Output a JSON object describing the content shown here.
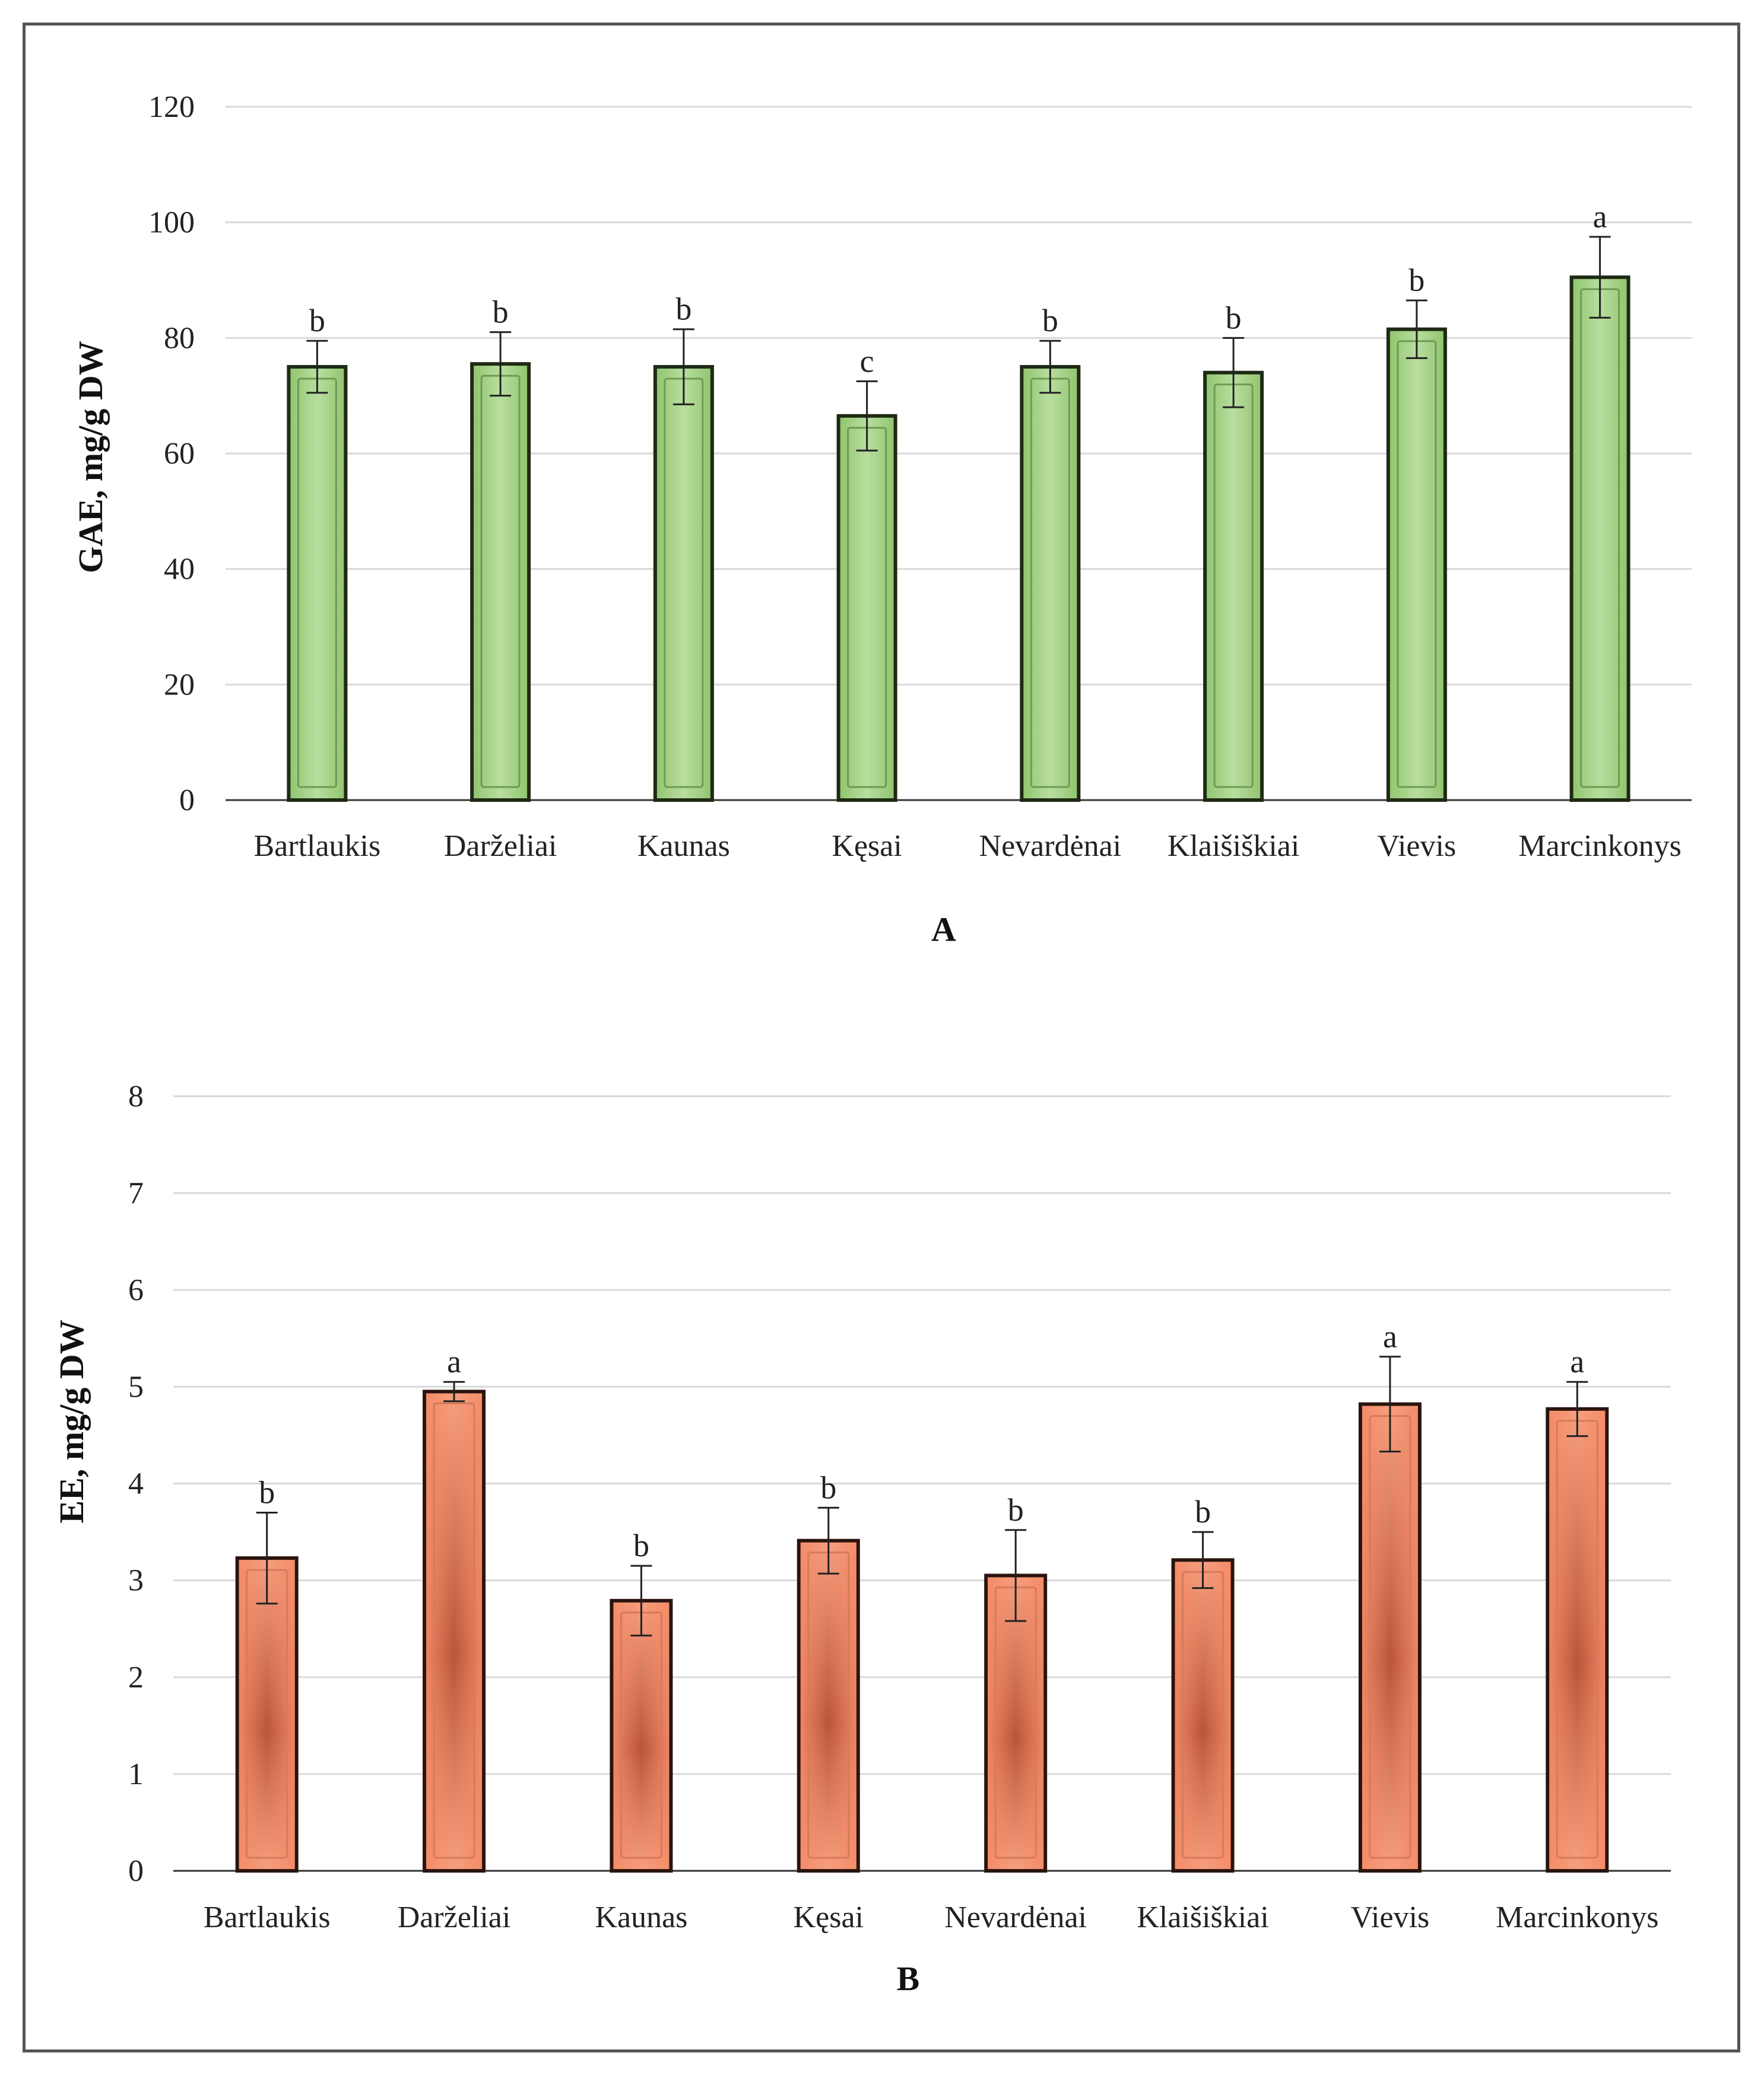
{
  "chart_data": [
    {
      "type": "bar",
      "panel_label": "A",
      "title": "",
      "xlabel": "",
      "ylabel": "GAE, mg/g DW",
      "ylim": [
        0,
        120
      ],
      "yticks": [
        0,
        20,
        40,
        60,
        80,
        100,
        120
      ],
      "grid": true,
      "bar_color": "#a9d18e",
      "categories": [
        "Bartlaukis",
        "Darželiai",
        "Kaunas",
        "Kęsai",
        "Nevardėnai",
        "Klaišiškiai",
        "Vievis",
        "Marcinkonys"
      ],
      "values": [
        75,
        75.5,
        75,
        66.5,
        75,
        74,
        81.5,
        90.5
      ],
      "errors": [
        4.5,
        5.5,
        6.5,
        6,
        4.5,
        6,
        5,
        7
      ],
      "significance": [
        "b",
        "b",
        "b",
        "c",
        "b",
        "b",
        "b",
        "a"
      ]
    },
    {
      "type": "bar",
      "panel_label": "B",
      "title": "",
      "xlabel": "",
      "ylabel": "EE, mg/g DW",
      "ylim": [
        0,
        8
      ],
      "yticks": [
        0,
        1,
        2,
        3,
        4,
        5,
        6,
        7,
        8
      ],
      "grid": true,
      "bar_color": "#f4886a",
      "categories": [
        "Bartlaukis",
        "Darželiai",
        "Kaunas",
        "Kęsai",
        "Nevardėnai",
        "Klaišiškiai",
        "Vievis",
        "Marcinkonys"
      ],
      "values": [
        3.23,
        4.95,
        2.79,
        3.41,
        3.05,
        3.21,
        4.82,
        4.77
      ],
      "errors": [
        0.47,
        0.1,
        0.36,
        0.34,
        0.47,
        0.29,
        0.49,
        0.28
      ],
      "significance": [
        "b",
        "a",
        "b",
        "b",
        "b",
        "b",
        "a",
        "a"
      ]
    }
  ]
}
